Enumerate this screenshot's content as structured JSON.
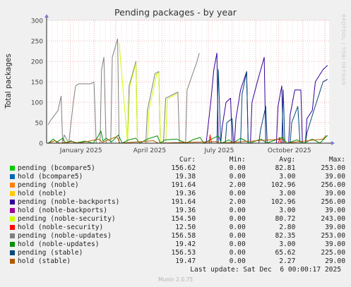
{
  "watermark": "RRDTOOL / TOBI OETIKER",
  "footer": "Munin 2.0.75",
  "last_update": "Last update: Sat Dec  6 00:00:17 2025",
  "legend_headers": {
    "cur": "Cur:",
    "min": "Min:",
    "avg": "Avg:",
    "max": "Max:"
  },
  "chart_data": {
    "type": "line",
    "title": "Pending packages - by year",
    "ylabel": "Total packages",
    "xlabel": "",
    "ylim": [
      0,
      300
    ],
    "yticks": [
      0,
      50,
      100,
      150,
      200,
      250,
      300
    ],
    "xlim": [
      "2024-12-01",
      "2025-12-06"
    ],
    "xticks": [
      {
        "label": "January 2025",
        "date": "2025-01-15"
      },
      {
        "label": "April 2025",
        "date": "2025-04-15"
      },
      {
        "label": "July 2025",
        "date": "2025-07-15"
      },
      {
        "label": "October 2025",
        "date": "2025-10-15"
      }
    ],
    "grid": true,
    "legend": [
      {
        "name": "pending (bcompare5)",
        "color": "#00cc00",
        "cur": "156.62",
        "min": "0.00",
        "avg": "82.81",
        "max": "253.00"
      },
      {
        "name": "hold (bcompare5)",
        "color": "#0066b3",
        "cur": "19.38",
        "min": "0.00",
        "avg": "3.00",
        "max": "39.00"
      },
      {
        "name": "pending (noble)",
        "color": "#ff8000",
        "cur": "191.64",
        "min": "2.00",
        "avg": "102.96",
        "max": "256.00"
      },
      {
        "name": "hold (noble)",
        "color": "#ffcc00",
        "cur": "19.36",
        "min": "0.00",
        "avg": "3.00",
        "max": "39.00"
      },
      {
        "name": "pending (noble-backports)",
        "color": "#330099",
        "cur": "191.64",
        "min": "2.00",
        "avg": "102.96",
        "max": "256.00"
      },
      {
        "name": "hold (noble-backports)",
        "color": "#990099",
        "cur": "19.36",
        "min": "0.00",
        "avg": "3.00",
        "max": "39.00"
      },
      {
        "name": "pending (noble-security)",
        "color": "#ccff00",
        "cur": "154.50",
        "min": "0.00",
        "avg": "80.72",
        "max": "243.00"
      },
      {
        "name": "hold (noble-security)",
        "color": "#ff0000",
        "cur": "12.50",
        "min": "0.00",
        "avg": "2.80",
        "max": "39.00"
      },
      {
        "name": "pending (noble-updates)",
        "color": "#808080",
        "cur": "156.58",
        "min": "0.00",
        "avg": "82.35",
        "max": "253.00"
      },
      {
        "name": "hold (noble-updates)",
        "color": "#008f00",
        "cur": "19.42",
        "min": "0.00",
        "avg": "3.00",
        "max": "39.00"
      },
      {
        "name": "pending (stable)",
        "color": "#00487d",
        "cur": "156.53",
        "min": "0.00",
        "avg": "65.62",
        "max": "225.00"
      },
      {
        "name": "hold (stable)",
        "color": "#b35a00",
        "cur": "19.47",
        "min": "0.00",
        "avg": "2.27",
        "max": "29.00"
      }
    ],
    "series": [
      {
        "color": "#808080",
        "points": [
          [
            "2024-12-03",
            45
          ],
          [
            "2024-12-06",
            55
          ],
          [
            "2024-12-16",
            80
          ],
          [
            "2024-12-20",
            115
          ],
          [
            "2024-12-22",
            0
          ],
          [
            "2024-12-24",
            20
          ],
          [
            "2024-12-30",
            0
          ],
          [
            "2025-01-05",
            100
          ],
          [
            "2025-01-08",
            140
          ],
          [
            "2025-01-12",
            145
          ],
          [
            "2025-01-28",
            145
          ],
          [
            "2025-02-01",
            150
          ],
          [
            "2025-02-04",
            0
          ],
          [
            "2025-02-09",
            0
          ],
          [
            "2025-02-11",
            180
          ],
          [
            "2025-02-14",
            210
          ],
          [
            "2025-02-17",
            0
          ],
          [
            "2025-02-23",
            0
          ],
          [
            "2025-02-25",
            210
          ],
          [
            "2025-03-04",
            255
          ],
          [
            "2025-03-06",
            0
          ],
          [
            "2025-03-17",
            0
          ],
          [
            "2025-03-19",
            140
          ],
          [
            "2025-03-28",
            200
          ],
          [
            "2025-03-30",
            0
          ],
          [
            "2025-04-10",
            0
          ],
          [
            "2025-04-12",
            80
          ],
          [
            "2025-04-22",
            170
          ],
          [
            "2025-04-27",
            175
          ],
          [
            "2025-04-29",
            0
          ],
          [
            "2025-05-03",
            0
          ],
          [
            "2025-05-06",
            110
          ],
          [
            "2025-05-22",
            125
          ],
          [
            "2025-05-24",
            0
          ],
          [
            "2025-06-01",
            0
          ],
          [
            "2025-06-03",
            130
          ],
          [
            "2025-06-16",
            200
          ],
          [
            "2025-06-19",
            220
          ]
        ]
      },
      {
        "color": "#ccff00",
        "points": [
          [
            "2025-03-06",
            245
          ],
          [
            "2025-03-17",
            0
          ],
          [
            "2025-03-20",
            140
          ],
          [
            "2025-03-28",
            195
          ],
          [
            "2025-03-30",
            0
          ],
          [
            "2025-04-12",
            0
          ],
          [
            "2025-04-14",
            80
          ],
          [
            "2025-04-24",
            168
          ],
          [
            "2025-04-27",
            172
          ],
          [
            "2025-04-29",
            0
          ],
          [
            "2025-05-06",
            0
          ],
          [
            "2025-05-08",
            108
          ],
          [
            "2025-05-22",
            122
          ]
        ]
      },
      {
        "color": "#330099",
        "points": [
          [
            "2025-06-28",
            0
          ],
          [
            "2025-07-01",
            50
          ],
          [
            "2025-07-04",
            100
          ],
          [
            "2025-07-08",
            180
          ],
          [
            "2025-07-12",
            220
          ],
          [
            "2025-07-14",
            0
          ],
          [
            "2025-07-17",
            0
          ],
          [
            "2025-07-19",
            40
          ],
          [
            "2025-07-24",
            100
          ],
          [
            "2025-07-30",
            110
          ],
          [
            "2025-08-01",
            0
          ],
          [
            "2025-08-04",
            0
          ],
          [
            "2025-08-06",
            60
          ],
          [
            "2025-08-12",
            130
          ],
          [
            "2025-08-20",
            175
          ],
          [
            "2025-08-22",
            0
          ],
          [
            "2025-08-25",
            0
          ],
          [
            "2025-08-27",
            100
          ],
          [
            "2025-09-03",
            150
          ],
          [
            "2025-09-12",
            210
          ],
          [
            "2025-09-14",
            0
          ],
          [
            "2025-09-28",
            0
          ],
          [
            "2025-09-30",
            90
          ],
          [
            "2025-10-05",
            140
          ],
          [
            "2025-10-07",
            0
          ],
          [
            "2025-10-14",
            0
          ],
          [
            "2025-10-16",
            70
          ],
          [
            "2025-10-22",
            130
          ],
          [
            "2025-10-30",
            130
          ],
          [
            "2025-11-01",
            0
          ],
          [
            "2025-11-05",
            0
          ],
          [
            "2025-11-07",
            60
          ],
          [
            "2025-11-14",
            80
          ],
          [
            "2025-11-18",
            150
          ],
          [
            "2025-11-28",
            180
          ],
          [
            "2025-12-04",
            190
          ]
        ]
      },
      {
        "color": "#00487d",
        "points": [
          [
            "2025-07-12",
            0
          ],
          [
            "2025-07-14",
            180
          ],
          [
            "2025-07-17",
            0
          ],
          [
            "2025-07-23",
            0
          ],
          [
            "2025-07-25",
            50
          ],
          [
            "2025-08-01",
            60
          ],
          [
            "2025-08-03",
            0
          ],
          [
            "2025-08-12",
            0
          ],
          [
            "2025-08-14",
            120
          ],
          [
            "2025-08-20",
            175
          ],
          [
            "2025-08-22",
            0
          ],
          [
            "2025-09-05",
            0
          ],
          [
            "2025-09-07",
            30
          ],
          [
            "2025-09-14",
            90
          ],
          [
            "2025-09-16",
            0
          ],
          [
            "2025-10-05",
            0
          ],
          [
            "2025-10-07",
            130
          ],
          [
            "2025-10-09",
            0
          ],
          [
            "2025-10-16",
            0
          ],
          [
            "2025-10-18",
            50
          ],
          [
            "2025-10-26",
            90
          ],
          [
            "2025-10-29",
            0
          ],
          [
            "2025-11-05",
            0
          ],
          [
            "2025-11-07",
            25
          ],
          [
            "2025-11-16",
            80
          ],
          [
            "2025-11-28",
            150
          ],
          [
            "2025-12-04",
            156
          ]
        ]
      },
      {
        "color": "#008f00",
        "points": [
          [
            "2024-12-03",
            0
          ],
          [
            "2024-12-10",
            10
          ],
          [
            "2024-12-14",
            2
          ],
          [
            "2024-12-22",
            12
          ],
          [
            "2024-12-26",
            0
          ],
          [
            "2025-01-02",
            6
          ],
          [
            "2025-01-07",
            0
          ],
          [
            "2025-01-20",
            5
          ],
          [
            "2025-01-31",
            0
          ],
          [
            "2025-02-06",
            15
          ],
          [
            "2025-02-10",
            30
          ],
          [
            "2025-02-13",
            5
          ],
          [
            "2025-02-17",
            12
          ],
          [
            "2025-02-24",
            3
          ],
          [
            "2025-03-05",
            20
          ],
          [
            "2025-03-10",
            0
          ],
          [
            "2025-03-18",
            8
          ],
          [
            "2025-03-28",
            12
          ],
          [
            "2025-04-02",
            0
          ],
          [
            "2025-04-12",
            10
          ],
          [
            "2025-04-25",
            18
          ],
          [
            "2025-04-29",
            0
          ],
          [
            "2025-05-05",
            8
          ],
          [
            "2025-05-20",
            10
          ],
          [
            "2025-06-02",
            0
          ],
          [
            "2025-06-10",
            8
          ],
          [
            "2025-06-20",
            14
          ],
          [
            "2025-06-25",
            0
          ],
          [
            "2025-07-05",
            10
          ],
          [
            "2025-07-14",
            18
          ],
          [
            "2025-07-18",
            0
          ],
          [
            "2025-07-28",
            8
          ],
          [
            "2025-08-02",
            0
          ],
          [
            "2025-08-12",
            12
          ],
          [
            "2025-08-24",
            0
          ],
          [
            "2025-09-08",
            10
          ],
          [
            "2025-09-15",
            0
          ],
          [
            "2025-10-06",
            14
          ],
          [
            "2025-10-12",
            0
          ],
          [
            "2025-10-25",
            8
          ],
          [
            "2025-11-03",
            0
          ],
          [
            "2025-11-14",
            10
          ],
          [
            "2025-11-24",
            0
          ],
          [
            "2025-12-04",
            19
          ]
        ]
      },
      {
        "color": "#b35a00",
        "points": [
          [
            "2024-12-03",
            0
          ],
          [
            "2024-12-12",
            6
          ],
          [
            "2024-12-18",
            0
          ],
          [
            "2025-01-04",
            4
          ],
          [
            "2025-01-12",
            0
          ],
          [
            "2025-02-08",
            10
          ],
          [
            "2025-02-12",
            2
          ],
          [
            "2025-03-03",
            16
          ],
          [
            "2025-03-07",
            0
          ],
          [
            "2025-04-20",
            6
          ],
          [
            "2025-04-26",
            0
          ],
          [
            "2025-07-12",
            4
          ],
          [
            "2025-07-16",
            0
          ],
          [
            "2025-10-06",
            10
          ],
          [
            "2025-10-10",
            0
          ],
          [
            "2025-11-28",
            10
          ],
          [
            "2025-12-02",
            19
          ]
        ]
      },
      {
        "color": "#ff0000",
        "points": [
          [
            "2025-07-02",
            0
          ],
          [
            "2025-07-03",
            20
          ],
          [
            "2025-07-05",
            0
          ],
          [
            "2025-10-01",
            0
          ],
          [
            "2025-10-02",
            14
          ],
          [
            "2025-10-04",
            0
          ]
        ]
      }
    ]
  }
}
